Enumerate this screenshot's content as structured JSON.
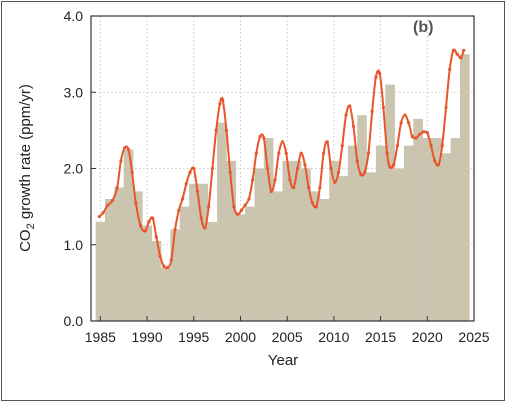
{
  "chart_data": {
    "type": "bar",
    "panel_label": "(b)",
    "xlabel": "Year",
    "ylabel_main": "CO",
    "ylabel_sub": "2",
    "ylabel_rest": " growth rate (ppm/yr)",
    "xlim": [
      1984,
      2025
    ],
    "ylim": [
      0.0,
      4.0
    ],
    "x_ticks": [
      "1985",
      "1990",
      "1995",
      "2000",
      "2005",
      "2010",
      "2015",
      "2020",
      "2025"
    ],
    "y_ticks": [
      "0.0",
      "1.0",
      "2.0",
      "3.0",
      "4.0"
    ],
    "grid": true,
    "bar_color": "#cbc5b0",
    "line_color": "#e8552a",
    "annual_bars": {
      "years": [
        1985,
        1986,
        1987,
        1988,
        1989,
        1990,
        1991,
        1992,
        1993,
        1994,
        1995,
        1996,
        1997,
        1998,
        1999,
        2000,
        2001,
        2002,
        2003,
        2004,
        2005,
        2006,
        2007,
        2008,
        2009,
        2010,
        2011,
        2012,
        2013,
        2014,
        2015,
        2016,
        2017,
        2018,
        2019,
        2020,
        2021,
        2022,
        2023,
        2024
      ],
      "values": [
        1.3,
        1.6,
        1.75,
        2.25,
        1.7,
        1.25,
        1.05,
        0.7,
        1.2,
        1.5,
        1.8,
        1.8,
        1.3,
        2.6,
        2.1,
        1.4,
        1.5,
        2.0,
        2.4,
        1.7,
        2.1,
        2.1,
        2.0,
        1.7,
        1.6,
        2.1,
        1.9,
        2.3,
        2.7,
        1.95,
        2.3,
        3.1,
        2.0,
        2.3,
        2.65,
        2.4,
        2.4,
        2.2,
        2.4,
        3.5
      ]
    },
    "monthly_series": {
      "x": [
        1984.9,
        1985.3,
        1985.8,
        1986.3,
        1986.8,
        1987.2,
        1987.6,
        1988.0,
        1988.4,
        1988.8,
        1989.3,
        1989.8,
        1990.2,
        1990.6,
        1991.0,
        1991.4,
        1991.8,
        1992.2,
        1992.6,
        1993.0,
        1993.4,
        1993.8,
        1994.2,
        1994.6,
        1995.0,
        1995.4,
        1995.8,
        1996.2,
        1996.6,
        1997.0,
        1997.4,
        1997.8,
        1998.1,
        1998.5,
        1998.9,
        1999.3,
        1999.7,
        2000.1,
        2000.5,
        2000.9,
        2001.3,
        2001.7,
        2002.1,
        2002.5,
        2002.9,
        2003.3,
        2003.7,
        2004.1,
        2004.5,
        2004.9,
        2005.3,
        2005.7,
        2006.1,
        2006.5,
        2006.9,
        2007.3,
        2007.7,
        2008.1,
        2008.5,
        2008.9,
        2009.3,
        2009.7,
        2010.1,
        2010.5,
        2010.9,
        2011.3,
        2011.7,
        2012.1,
        2012.5,
        2012.9,
        2013.3,
        2013.7,
        2014.1,
        2014.5,
        2014.9,
        2015.3,
        2015.7,
        2016.0,
        2016.4,
        2016.8,
        2017.2,
        2017.6,
        2018.0,
        2018.4,
        2018.8,
        2019.2,
        2019.6,
        2020.0,
        2020.4,
        2020.8,
        2021.2,
        2021.6,
        2022.0,
        2022.4,
        2022.8,
        2023.2,
        2023.6,
        2023.9
      ],
      "y": [
        1.37,
        1.42,
        1.52,
        1.58,
        1.75,
        2.1,
        2.27,
        2.25,
        1.95,
        1.55,
        1.25,
        1.18,
        1.3,
        1.35,
        1.1,
        0.85,
        0.72,
        0.7,
        0.8,
        1.2,
        1.45,
        1.6,
        1.8,
        1.95,
        2.0,
        1.7,
        1.35,
        1.22,
        1.5,
        2.0,
        2.5,
        2.85,
        2.9,
        2.5,
        1.95,
        1.5,
        1.4,
        1.45,
        1.52,
        1.6,
        1.85,
        2.2,
        2.42,
        2.4,
        2.0,
        1.7,
        1.85,
        2.2,
        2.35,
        2.2,
        1.85,
        1.75,
        2.0,
        2.2,
        2.05,
        1.75,
        1.55,
        1.5,
        1.75,
        2.2,
        2.35,
        2.0,
        1.82,
        1.95,
        2.3,
        2.7,
        2.82,
        2.55,
        2.1,
        1.92,
        1.95,
        2.2,
        2.75,
        3.2,
        3.25,
        2.8,
        2.2,
        2.02,
        2.05,
        2.3,
        2.6,
        2.7,
        2.6,
        2.42,
        2.4,
        2.45,
        2.48,
        2.47,
        2.3,
        2.1,
        2.05,
        2.3,
        2.8,
        3.3,
        3.55,
        3.5,
        3.45,
        3.55
      ]
    }
  }
}
